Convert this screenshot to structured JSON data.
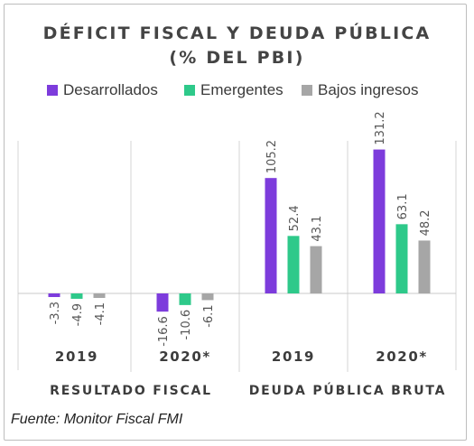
{
  "chart_data": {
    "type": "bar",
    "title_line1": "DÉFICIT FISCAL Y DEUDA PÚBLICA",
    "title_line2": "(% DEL PBI)",
    "groups": [
      {
        "label": "RESULTADO FISCAL",
        "categories": [
          "2019",
          "2020*"
        ]
      },
      {
        "label": "DEUDA PÚBLICA BRUTA",
        "categories": [
          "2019",
          "2020*"
        ]
      }
    ],
    "categories": [
      "2019",
      "2020*",
      "2019",
      "2020*"
    ],
    "series": [
      {
        "name": "Desarrollados",
        "color": "#7d3cdc",
        "values": [
          -3.3,
          -16.6,
          105.2,
          131.2
        ]
      },
      {
        "name": "Emergentes",
        "color": "#2ec98a",
        "values": [
          -4.9,
          -10.6,
          52.4,
          63.1
        ]
      },
      {
        "name": "Bajos ingresos",
        "color": "#a6a6a6",
        "values": [
          -4.1,
          -6.1,
          43.1,
          48.2
        ]
      }
    ],
    "value_labels": [
      [
        "-3.3",
        "-16.6",
        "105.2",
        "131.2"
      ],
      [
        "-4.9",
        "-10.6",
        "52.4",
        "63.1"
      ],
      [
        "-4.1",
        "-6.1",
        "43.1",
        "48.2"
      ]
    ],
    "legend_position": "top",
    "grid": false,
    "source": "Fuente: Monitor Fiscal FMI"
  }
}
